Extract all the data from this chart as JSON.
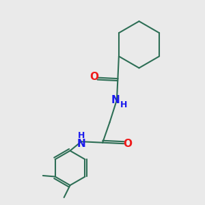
{
  "background_color": "#eaeaea",
  "bond_color": "#2d6e55",
  "N_color": "#1a1aee",
  "O_color": "#ee1a1a",
  "line_width": 1.5,
  "font_size_N": 11,
  "font_size_H": 9,
  "font_size_O": 11,
  "figsize": [
    3.0,
    3.0
  ],
  "dpi": 100,
  "xlim": [
    0,
    10
  ],
  "ylim": [
    0,
    10
  ]
}
